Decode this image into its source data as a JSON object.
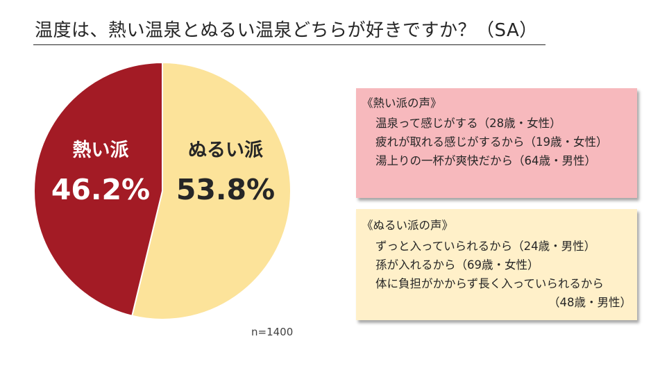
{
  "page": {
    "title": "温度は、熱い温泉とぬるい温泉どちらが好きですか？（SA）",
    "note": "n=1400"
  },
  "chart_data": {
    "type": "pie",
    "start_angle_deg": 0,
    "direction": "clockwise",
    "slices": [
      {
        "label": "ぬるい派",
        "value": 53.8,
        "display": "53.8%",
        "color": "#fce39a",
        "text_color": "#262626"
      },
      {
        "label": "熱い派",
        "value": 46.2,
        "display": "46.2%",
        "color": "#a31b25",
        "text_color": "#ffffff"
      }
    ]
  },
  "voices": {
    "hot": {
      "title": "《熱い派の声》",
      "items": [
        "温泉って感じがする（28歳・女性）",
        "疲れが取れる感じがするから（19歳・女性）",
        "湯上りの一杯が爽快だから（64歳・男性）"
      ],
      "color": "#f7b9bd"
    },
    "warm": {
      "title": "《ぬるい派の声》",
      "items": [
        "ずっと入っていられるから（24歳・男性）",
        "孫が入れるから（69歳・女性）",
        "体に負担がかからず長く入っていられるから",
        "（48歳・男性）"
      ],
      "color": "#fff0c9"
    }
  }
}
